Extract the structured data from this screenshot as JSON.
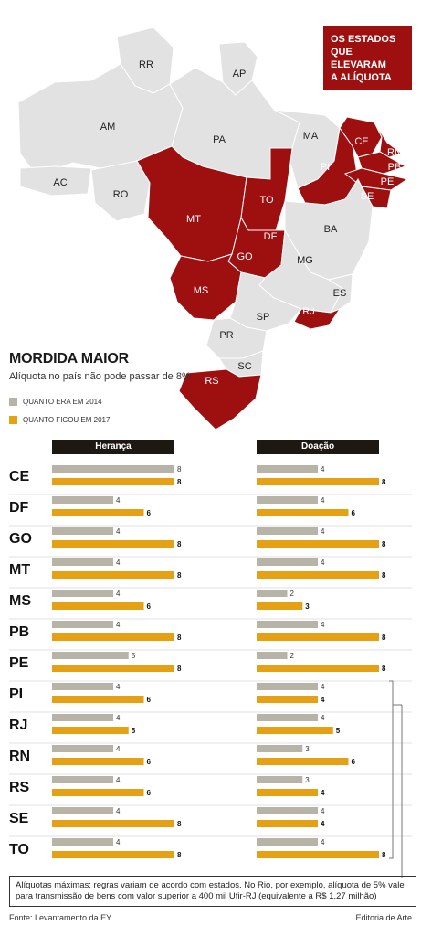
{
  "map": {
    "legend_title_lines": [
      "OS ESTADOS",
      "QUE ELEVARAM",
      "A ALÍQUOTA"
    ],
    "highlight_color": "#9e0f10",
    "base_color": "#e2e2e2",
    "states": [
      {
        "code": "RR",
        "highlighted": false
      },
      {
        "code": "AP",
        "highlighted": false
      },
      {
        "code": "AM",
        "highlighted": false
      },
      {
        "code": "PA",
        "highlighted": false
      },
      {
        "code": "MA",
        "highlighted": false
      },
      {
        "code": "AC",
        "highlighted": false
      },
      {
        "code": "RO",
        "highlighted": false
      },
      {
        "code": "MT",
        "highlighted": true
      },
      {
        "code": "TO",
        "highlighted": true
      },
      {
        "code": "PI",
        "highlighted": true
      },
      {
        "code": "CE",
        "highlighted": true
      },
      {
        "code": "RN",
        "highlighted": true
      },
      {
        "code": "PB",
        "highlighted": true
      },
      {
        "code": "PE",
        "highlighted": true
      },
      {
        "code": "SE",
        "highlighted": true
      },
      {
        "code": "BA",
        "highlighted": false
      },
      {
        "code": "DF",
        "highlighted": true
      },
      {
        "code": "GO",
        "highlighted": true
      },
      {
        "code": "MG",
        "highlighted": false
      },
      {
        "code": "ES",
        "highlighted": false
      },
      {
        "code": "MS",
        "highlighted": true
      },
      {
        "code": "SP",
        "highlighted": false
      },
      {
        "code": "RJ",
        "highlighted": true
      },
      {
        "code": "PR",
        "highlighted": false
      },
      {
        "code": "SC",
        "highlighted": false
      },
      {
        "code": "RS",
        "highlighted": true
      }
    ]
  },
  "chart_data": {
    "type": "bar",
    "title": "MORDIDA MAIOR",
    "subtitle": "Alíquota no país não pode passar de 8%",
    "categories": [
      "CE",
      "DF",
      "GO",
      "MT",
      "MS",
      "PB",
      "PE",
      "PI",
      "RJ",
      "RN",
      "RS",
      "SE",
      "TO"
    ],
    "legend": [
      {
        "label": "QUANTO ERA EM 2014",
        "color": "#b8b3a7"
      },
      {
        "label": "QUANTO FICOU EM 2017",
        "color": "#e5a013"
      }
    ],
    "panels": [
      {
        "title": "Herança",
        "series": [
          {
            "name": "QUANTO ERA EM 2014",
            "values": [
              8,
              4,
              4,
              4,
              4,
              4,
              5,
              4,
              4,
              4,
              4,
              4,
              4
            ]
          },
          {
            "name": "QUANTO FICOU EM 2017",
            "values": [
              8,
              6,
              8,
              8,
              6,
              8,
              8,
              6,
              5,
              6,
              6,
              8,
              8
            ]
          }
        ]
      },
      {
        "title": "Doação",
        "series": [
          {
            "name": "QUANTO ERA EM 2014",
            "values": [
              4,
              4,
              4,
              4,
              2,
              4,
              2,
              4,
              4,
              3,
              3,
              4,
              4
            ]
          },
          {
            "name": "QUANTO FICOU EM 2017",
            "values": [
              8,
              6,
              8,
              8,
              3,
              8,
              8,
              4,
              5,
              6,
              4,
              4,
              8
            ]
          }
        ]
      }
    ],
    "xlim": [
      0,
      8
    ]
  },
  "footnote": "Alíquotas máximas; regras variam de acordo com estados. No Rio, por exemplo, alíquota de 5% vale para transmissão de bens com valor superior a 400 mil Ufir-RJ (equivalente a R$ 1,27 milhão)",
  "source": "Fonte: Levantamento da EY",
  "credit": "Editoria de Arte"
}
